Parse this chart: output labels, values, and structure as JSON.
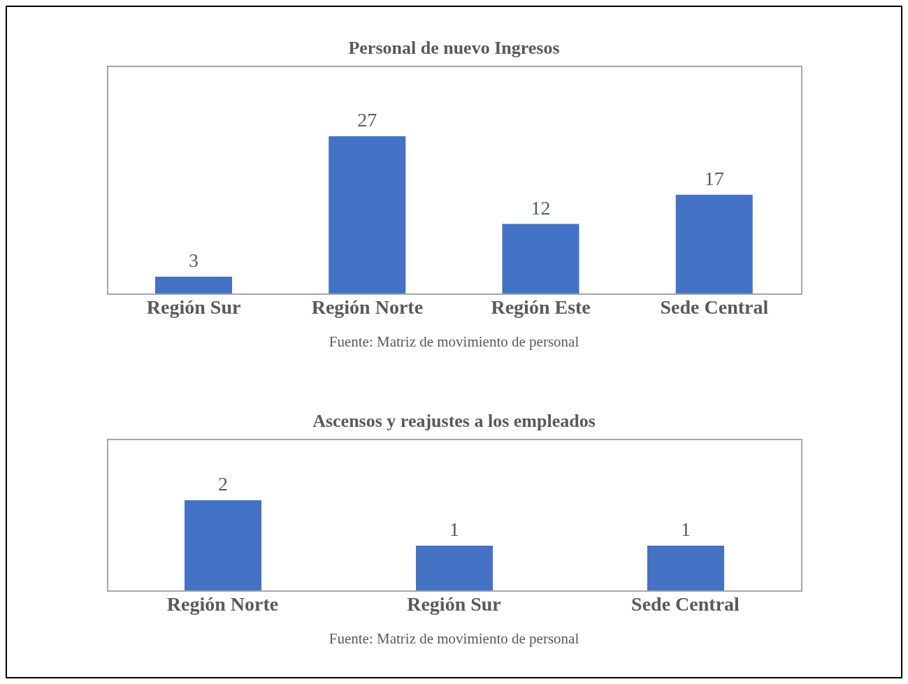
{
  "chart_data": [
    {
      "type": "bar",
      "title": "Personal de nuevo Ingresos",
      "categories": [
        "Región Sur",
        "Región Norte",
        "Región Este",
        "Sede Central"
      ],
      "values": [
        3,
        27,
        12,
        17
      ],
      "color": "#4472c4",
      "data_labels": true,
      "annotations": [
        "Fuente: Matriz de movimiento de personal"
      ]
    },
    {
      "type": "bar",
      "title": "Ascensos y reajustes a los empleados",
      "categories": [
        "Región Norte",
        "Región Sur",
        "Sede Central"
      ],
      "values": [
        2,
        1,
        1
      ],
      "color": "#4472c4",
      "data_labels": true,
      "annotations": [
        "Fuente: Matriz de movimiento de personal"
      ]
    }
  ]
}
